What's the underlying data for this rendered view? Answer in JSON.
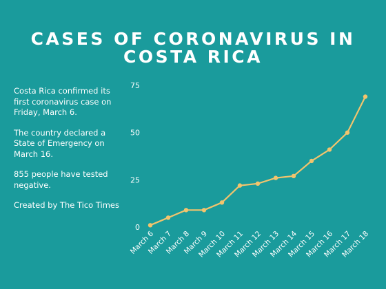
{
  "chart_data": {
    "type": "line",
    "title_lines": [
      "CASES OF CORONAVIRUS IN",
      "COSTA RICA"
    ],
    "categories": [
      "March 6",
      "March 7",
      "March 8",
      "March 9",
      "March 10",
      "March 11",
      "March 12",
      "March 13",
      "March 14",
      "March 15",
      "March 16",
      "March 17",
      "March 18"
    ],
    "values": [
      1,
      5,
      9,
      9,
      13,
      22,
      23,
      26,
      27,
      35,
      41,
      50,
      69
    ],
    "yticks": [
      0,
      25,
      50,
      75
    ],
    "ylim": [
      0,
      75
    ],
    "grid": false,
    "legend": "none",
    "xlabel": "",
    "ylabel": ""
  },
  "notes": [
    "Costa Rica confirmed its first coronavirus case on Friday, March 6.",
    "The country declared a State of Emergency on March 16.",
    "855 people have tested negative.",
    "Created by The Tico Times"
  ],
  "colors": {
    "background": "#1a9b9c",
    "line": "#f2c46d",
    "text": "#ffffff"
  }
}
